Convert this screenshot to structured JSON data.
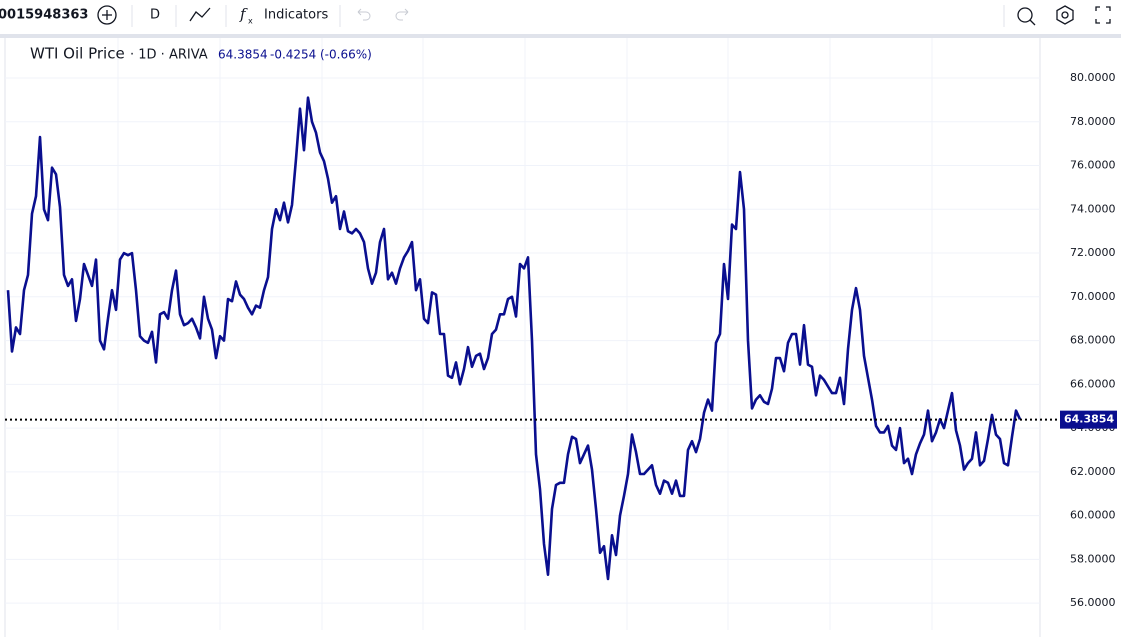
{
  "toolbar": {
    "symbol": "0015948363",
    "interval": "D",
    "indicators": "Indicators"
  },
  "chart_data": {
    "type": "line",
    "title": "WTI Oil Price",
    "subtitle": "· 1D · ARIVA",
    "last_value": 64.3854,
    "change": "-0.4254",
    "change_percent": "(-0.66%)",
    "color": "#0a0f8f",
    "grid": true,
    "ylim": [
      54.77,
      81.83
    ],
    "yticks": [
      {
        "value": 56,
        "label": "56.0000"
      },
      {
        "value": 58,
        "label": "58.0000"
      },
      {
        "value": 60,
        "label": "60.0000"
      },
      {
        "value": 62,
        "label": "62.0000"
      },
      {
        "value": 64,
        "label": "64.0000"
      },
      {
        "value": 66,
        "label": "66.0000"
      },
      {
        "value": 68,
        "label": "68.0000"
      },
      {
        "value": 70,
        "label": "70.0000"
      },
      {
        "value": 72,
        "label": "72.0000"
      },
      {
        "value": 74,
        "label": "74.0000"
      },
      {
        "value": 76,
        "label": "76.0000"
      },
      {
        "value": 78,
        "label": "78.0000"
      },
      {
        "value": 80,
        "label": "80.0000"
      }
    ],
    "values": [
      70.3,
      67.5,
      68.6,
      68.3,
      70.3,
      71.0,
      73.8,
      74.6,
      77.3,
      74.0,
      73.5,
      75.9,
      75.6,
      74.1,
      71.0,
      70.5,
      70.8,
      68.9,
      69.9,
      71.5,
      71.0,
      70.5,
      71.7,
      68.0,
      67.6,
      69.0,
      70.3,
      69.4,
      71.7,
      72.0,
      71.9,
      72.0,
      70.3,
      68.2,
      68.0,
      67.9,
      68.4,
      67.0,
      69.2,
      69.3,
      69.0,
      70.3,
      71.2,
      69.2,
      68.7,
      68.8,
      69.0,
      68.6,
      68.1,
      70.0,
      69.0,
      68.5,
      67.2,
      68.2,
      68.0,
      69.9,
      69.8,
      70.7,
      70.1,
      69.9,
      69.5,
      69.2,
      69.6,
      69.5,
      70.3,
      70.9,
      73.1,
      74.0,
      73.5,
      74.3,
      73.4,
      74.2,
      76.3,
      78.6,
      76.7,
      79.1,
      78.0,
      77.5,
      76.6,
      76.2,
      75.4,
      74.3,
      74.6,
      73.1,
      73.9,
      73.0,
      72.9,
      73.1,
      72.9,
      72.5,
      71.3,
      70.6,
      71.1,
      72.5,
      73.1,
      70.8,
      71.1,
      70.6,
      71.3,
      71.8,
      72.1,
      72.5,
      70.3,
      70.8,
      69.0,
      68.8,
      70.2,
      70.1,
      68.3,
      68.3,
      66.4,
      66.3,
      67.0,
      66.0,
      66.7,
      67.7,
      66.8,
      67.3,
      67.4,
      66.7,
      67.2,
      68.3,
      68.5,
      69.2,
      69.2,
      69.9,
      70.0,
      69.1,
      71.5,
      71.3,
      71.8,
      68.0,
      62.8,
      61.2,
      58.7,
      57.3,
      60.3,
      61.4,
      61.5,
      61.5,
      62.8,
      63.6,
      63.5,
      62.4,
      62.8,
      63.2,
      62.1,
      60.3,
      58.3,
      58.6,
      57.1,
      59.1,
      58.2,
      60.0,
      60.9,
      61.9,
      63.7,
      62.9,
      61.9,
      61.9,
      62.1,
      62.3,
      61.4,
      61.0,
      61.6,
      61.5,
      61.0,
      61.6,
      60.9,
      60.9,
      63.0,
      63.4,
      62.9,
      63.5,
      64.7,
      65.3,
      64.8,
      67.9,
      68.3,
      71.5,
      69.9,
      73.3,
      73.1,
      75.7,
      74.0,
      68.0,
      64.9,
      65.3,
      65.5,
      65.2,
      65.1,
      65.8,
      67.2,
      67.2,
      66.6,
      67.9,
      68.3,
      68.3,
      66.9,
      68.7,
      66.9,
      66.8,
      65.5,
      66.4,
      66.2,
      65.9,
      65.6,
      65.6,
      66.3,
      65.1,
      67.6,
      69.4,
      70.4,
      69.4,
      67.3,
      66.3,
      65.3,
      64.1,
      63.8,
      63.8,
      64.1,
      63.2,
      63.0,
      64.0,
      62.4,
      62.6,
      61.9,
      62.8,
      63.3,
      63.7,
      64.8,
      63.4,
      63.8,
      64.4,
      64.0,
      64.8,
      65.6,
      63.9,
      63.2,
      62.1,
      62.4,
      62.6,
      63.8,
      62.3,
      62.5,
      63.5,
      64.6,
      63.7,
      63.5,
      62.4,
      62.3,
      63.6,
      64.8,
      64.4
    ]
  }
}
